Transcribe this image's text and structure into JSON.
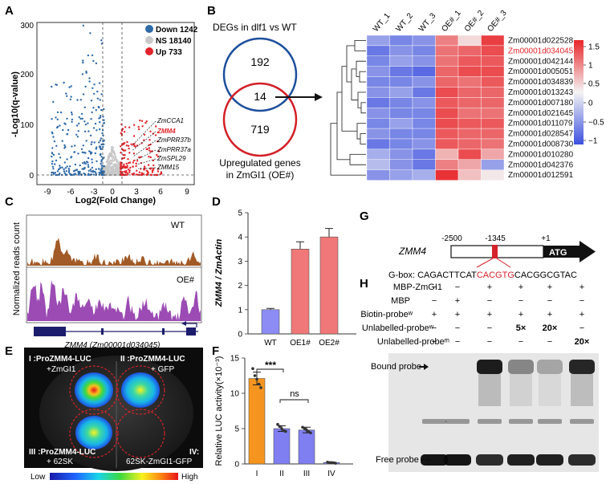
{
  "panels": {
    "A": "A",
    "B": "B",
    "C": "C",
    "D": "D",
    "E": "E",
    "F": "F",
    "G": "G",
    "H": "H"
  },
  "panelA": {
    "ylabel": "-Log10(q-value)",
    "xlabel": "Log2(Fold Change)",
    "legend": [
      {
        "label": "Down 1242",
        "color": "#2f6aa8"
      },
      {
        "label": "NS 18140",
        "color": "#c8c8c8"
      },
      {
        "label": "Up 733",
        "color": "#e3232a"
      }
    ],
    "genes": [
      "ZmCCA1",
      "ZMM4",
      "ZmPRR37b",
      "ZmPRR37a",
      "ZmSPL29",
      "ZMM15"
    ],
    "highlight_gene": "ZMM4"
  },
  "panelB": {
    "venn_title": "DEGs in dlf1 vs WT",
    "venn_bottom_line1": "Upregulated genes",
    "venn_bottom_line2": "in ZmGI1 (OE#)",
    "venn_top": "192",
    "venn_mid": "14",
    "venn_bottom": "719",
    "columns": [
      "WT_1",
      "WT_2",
      "WT_3",
      "OE#_1",
      "OE#_2",
      "OE#_3"
    ],
    "genes": [
      "Zm00001d022528",
      "Zm00001d034045",
      "Zm00001d042144",
      "Zm00001d005051",
      "Zm00001d034839",
      "Zm00001d013243",
      "Zm00001d007180",
      "Zm00001d021645",
      "Zm00001d011079",
      "Zm00001d028547",
      "Zm00001d008730",
      "Zm00001d010280",
      "Zm00001d042376",
      "Zm00001d012591"
    ],
    "highlight_gene": "Zm00001d034045",
    "scale_ticks": [
      "1.5",
      "1",
      "0.5",
      "0",
      "−0.5",
      "−1"
    ]
  },
  "panelC": {
    "ylabel": "Normalized reads count",
    "track1": "WT",
    "track2": "OE#",
    "gene_label": "ZMM4 (Zm00001d034045)"
  },
  "chart_data": [
    {
      "type": "bar",
      "panel": "D",
      "categories": [
        "WT",
        "OE1#",
        "OE2#"
      ],
      "values": [
        1.0,
        3.5,
        4.0
      ],
      "errors": [
        0.05,
        0.3,
        0.35
      ],
      "ylabel": "ZMM4 / ZmActin",
      "ylim": [
        0,
        5
      ],
      "yticks": [
        "0",
        "1",
        "2",
        "3",
        "4",
        "5"
      ],
      "colors": [
        "#8c8cf4",
        "#f07878",
        "#f07878"
      ]
    },
    {
      "type": "bar",
      "panel": "F",
      "categories": [
        "I",
        "II",
        "III",
        "IV"
      ],
      "values": [
        12.1,
        5.0,
        4.8,
        0.2
      ],
      "errors": [
        0.9,
        0.4,
        0.4,
        0.05
      ],
      "points": [
        [
          13.5,
          12.5,
          12.0,
          11.3,
          10.8
        ],
        [
          5.6,
          5.3,
          5.0,
          4.7,
          4.6
        ],
        [
          5.2,
          5.0,
          4.8,
          4.6,
          4.4
        ],
        [
          0.25,
          0.2,
          0.2,
          0.15,
          0.1
        ]
      ],
      "ylabel": "Relative LUC activity(×10⁻³)",
      "ylim": [
        0,
        15
      ],
      "yticks": [
        "0",
        "5",
        "10",
        "15"
      ],
      "colors": [
        "#f5951f",
        "#7f7ff2",
        "#7f7ff2",
        "#7f7ff2"
      ],
      "sig": [
        "***",
        "ns"
      ]
    }
  ],
  "panelE": {
    "q1a": "I :ProZMM4-LUC",
    "q1b": "+ZmGI1",
    "q2a": "II :ProZMM4-LUC",
    "q2b": "+ GFP",
    "q3a": "III :ProZMM4-LUC",
    "q3b": "+ 62SK",
    "q4a": "IV:",
    "q4b": "62SK-ZmGI1-GFP",
    "low": "Low",
    "high": "High"
  },
  "panelG": {
    "gene": "ZMM4",
    "pos1": "-2500",
    "pos2": "-1345",
    "pos3": "+1",
    "atg": "ATG",
    "gbox_prefix": "G-box: CAGACTTCAT",
    "gbox_core": "CACGTG",
    "gbox_suffix": "CACGGCGTAC"
  },
  "panelH": {
    "rows": [
      {
        "label": "MBP-ZmGI1",
        "vals": [
          "−",
          "−",
          "+",
          "+",
          "+",
          "+"
        ]
      },
      {
        "label": "MBP",
        "vals": [
          "−",
          "+",
          "−",
          "−",
          "−",
          "−"
        ]
      },
      {
        "label": "Biotin-probeʷ",
        "vals": [
          "+",
          "+",
          "+",
          "+",
          "+",
          "+"
        ]
      },
      {
        "label": "Unlabelled-probeʷ",
        "vals": [
          "−",
          "−",
          "−",
          "5×",
          "20×",
          "−"
        ]
      },
      {
        "label": "Unlabelled-probeᵐ",
        "vals": [
          "−",
          "−",
          "−",
          "−",
          "−",
          "20×"
        ]
      }
    ],
    "bound": "Bound probe",
    "free": "Free probe"
  }
}
